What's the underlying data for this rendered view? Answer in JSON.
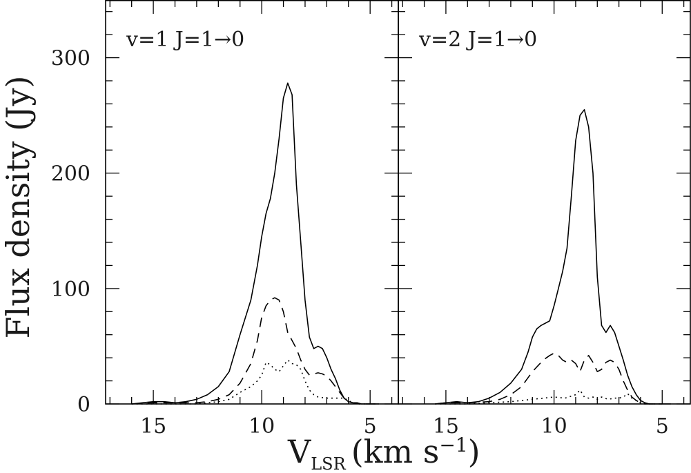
{
  "chart_data": [
    {
      "type": "line",
      "panel_title": "v=1  J=1→0",
      "xlim": [
        17.2,
        3.7
      ],
      "ylim": [
        0,
        350
      ],
      "series": [
        {
          "style": "solid",
          "x": [
            16,
            15.5,
            15,
            14.5,
            14,
            13.5,
            13,
            12.5,
            12,
            11.5,
            11,
            10.5,
            10.2,
            10,
            9.8,
            9.6,
            9.4,
            9.2,
            9,
            8.8,
            8.6,
            8.4,
            8.2,
            8,
            7.8,
            7.6,
            7.4,
            7.2,
            7,
            6.8,
            6.6,
            6.4,
            6.2,
            6,
            5.8,
            5.6,
            5.4,
            5.2,
            5,
            4.8,
            4.6
          ],
          "y": [
            0,
            1,
            2,
            2,
            1,
            2,
            4,
            8,
            15,
            28,
            60,
            90,
            120,
            145,
            165,
            178,
            200,
            230,
            265,
            278,
            268,
            190,
            140,
            90,
            58,
            48,
            50,
            48,
            40,
            30,
            22,
            12,
            5,
            2,
            1,
            1,
            0,
            0,
            0,
            0,
            0
          ]
        },
        {
          "style": "dashed",
          "x": [
            16,
            15,
            14,
            13,
            12.5,
            12,
            11.5,
            11,
            10.5,
            10.2,
            10,
            9.8,
            9.6,
            9.4,
            9.2,
            9,
            8.8,
            8.6,
            8.4,
            8.2,
            8,
            7.8,
            7.6,
            7.4,
            7.2,
            7,
            6.8,
            6.6,
            6.4,
            6.2,
            6,
            5.8,
            5.5,
            5,
            4.6
          ],
          "y": [
            0,
            1,
            1,
            1,
            2,
            4,
            8,
            18,
            35,
            55,
            75,
            85,
            90,
            92,
            90,
            80,
            62,
            55,
            48,
            38,
            30,
            25,
            26,
            27,
            26,
            24,
            20,
            15,
            10,
            5,
            2,
            1,
            0,
            0,
            0
          ]
        },
        {
          "style": "dotted",
          "x": [
            16,
            15,
            14,
            13,
            12.5,
            12,
            11.5,
            11,
            10.5,
            10.2,
            10,
            9.8,
            9.6,
            9.4,
            9.2,
            9,
            8.8,
            8.6,
            8.4,
            8.2,
            8,
            7.8,
            7.6,
            7.4,
            7,
            6.6,
            6.2,
            6,
            5.8,
            5.5,
            5,
            4.6
          ],
          "y": [
            0,
            0,
            0,
            0,
            1,
            2,
            4,
            10,
            15,
            20,
            25,
            36,
            34,
            30,
            28,
            33,
            38,
            35,
            34,
            30,
            20,
            12,
            8,
            6,
            5,
            5,
            5,
            3,
            1,
            0,
            0,
            0
          ]
        }
      ],
      "yticks": [
        0,
        100,
        200,
        300
      ],
      "xticks": [
        15,
        10,
        5
      ]
    },
    {
      "type": "line",
      "panel_title": "v=2  J=1→0",
      "xlim": [
        17.2,
        3.7
      ],
      "ylim": [
        0,
        350
      ],
      "series": [
        {
          "style": "solid",
          "x": [
            15.5,
            15,
            14.5,
            14,
            13.5,
            13,
            12.5,
            12,
            11.5,
            11.2,
            11,
            10.8,
            10.6,
            10.4,
            10.2,
            10,
            9.8,
            9.6,
            9.4,
            9.2,
            9,
            8.8,
            8.6,
            8.4,
            8.2,
            8,
            7.8,
            7.6,
            7.4,
            7.2,
            7,
            6.8,
            6.6,
            6.4,
            6.2,
            6,
            5.8,
            5.6,
            5.4,
            5.2,
            5,
            4.6
          ],
          "y": [
            0,
            1,
            2,
            1,
            2,
            5,
            10,
            18,
            30,
            45,
            58,
            65,
            68,
            70,
            72,
            85,
            100,
            115,
            135,
            180,
            228,
            250,
            255,
            240,
            200,
            110,
            68,
            62,
            68,
            62,
            50,
            38,
            25,
            15,
            8,
            3,
            1,
            0,
            0,
            0,
            0,
            0
          ]
        },
        {
          "style": "dashed",
          "x": [
            15.5,
            15,
            14,
            13,
            12.5,
            12,
            11.5,
            11,
            10.5,
            10.2,
            10,
            9.8,
            9.6,
            9.4,
            9.2,
            9,
            8.8,
            8.6,
            8.4,
            8.2,
            8,
            7.8,
            7.6,
            7.4,
            7.2,
            7,
            6.8,
            6.6,
            6.4,
            6.2,
            6,
            5.8,
            5.5,
            5
          ],
          "y": [
            0,
            1,
            1,
            2,
            4,
            8,
            15,
            28,
            38,
            42,
            44,
            42,
            38,
            36,
            38,
            35,
            28,
            38,
            42,
            36,
            28,
            30,
            36,
            38,
            36,
            30,
            20,
            12,
            6,
            3,
            1,
            0,
            0,
            0
          ]
        },
        {
          "style": "dotted",
          "x": [
            15.5,
            15,
            14,
            13,
            12,
            11.5,
            11,
            10.5,
            10,
            9.5,
            9,
            8.8,
            8.6,
            8.4,
            8.2,
            8,
            7.8,
            7.5,
            7.2,
            7,
            6.8,
            6.6,
            6.4,
            6.2,
            6,
            5.8,
            5.5,
            5
          ],
          "y": [
            0,
            0,
            0,
            1,
            2,
            3,
            4,
            5,
            6,
            5,
            8,
            12,
            6,
            5,
            6,
            4,
            6,
            4,
            5,
            5,
            6,
            9,
            5,
            3,
            1,
            0,
            0,
            0
          ]
        }
      ],
      "yticks": [
        0,
        100,
        200,
        300
      ],
      "xticks": [
        15,
        10,
        5
      ]
    }
  ],
  "axes": {
    "ylabel": "Flux density (Jy)",
    "xlabel_main": "V",
    "xlabel_sub": "LSR",
    "xlabel_units": "(km s",
    "xlabel_sup": "−1",
    "xlabel_close": ")"
  }
}
